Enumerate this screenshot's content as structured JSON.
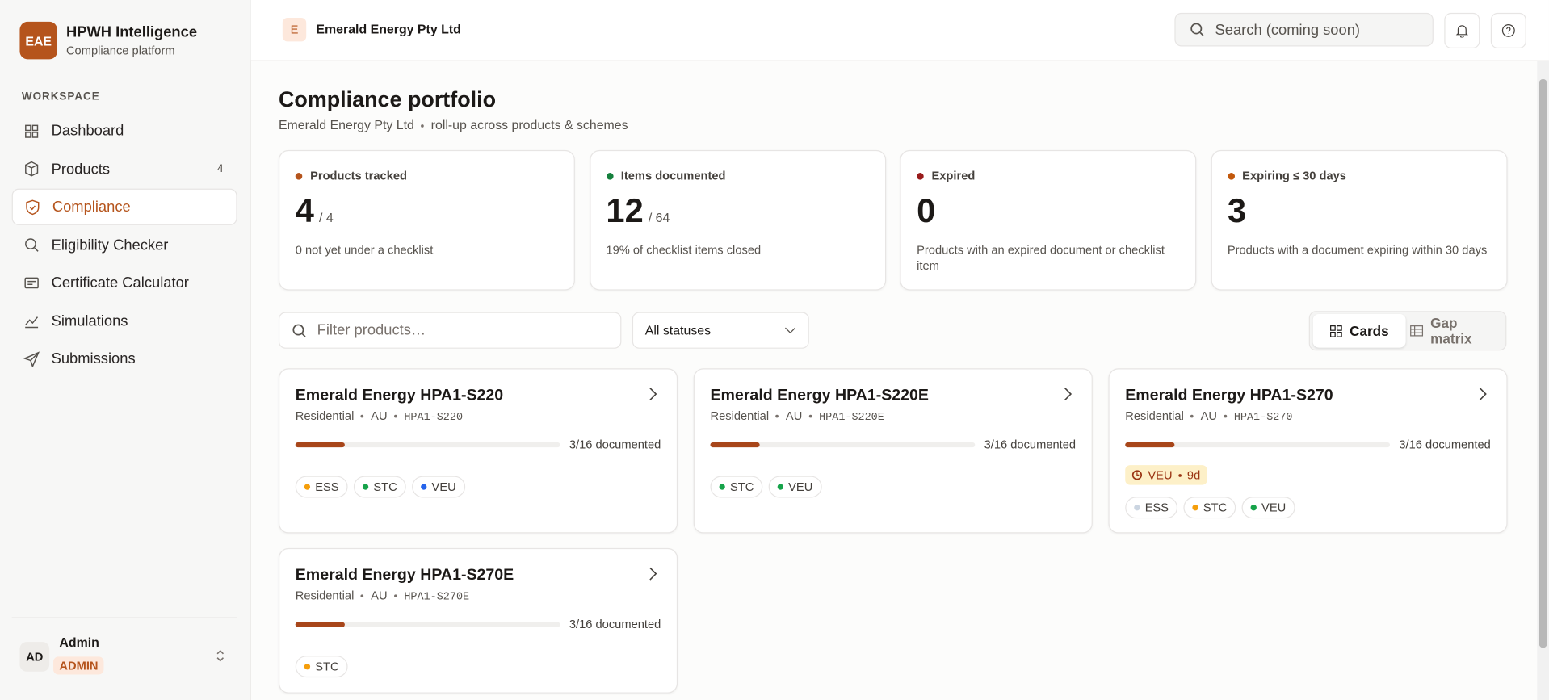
{
  "sidebar": {
    "logo": "EAE",
    "brand": "HPWH Intelligence",
    "brand_sub": "Compliance platform",
    "section": "WORKSPACE",
    "nav": [
      {
        "label": "Dashboard"
      },
      {
        "label": "Products",
        "badge": 4
      },
      {
        "label": "Compliance",
        "active": true
      },
      {
        "label": "Eligibility Checker"
      },
      {
        "label": "Certificate Calculator"
      },
      {
        "label": "Simulations"
      },
      {
        "label": "Submissions"
      }
    ],
    "user": {
      "initials": "AD",
      "name": "Admin",
      "role": "ADMIN"
    }
  },
  "topbar": {
    "org_initial": "E",
    "org_name": "Emerald Energy Pty Ltd",
    "search": "Search (coming soon)"
  },
  "page": {
    "title": "Compliance portfolio",
    "subtitle_org": "Emerald Energy Pty Ltd",
    "subtitle_rest": "roll-up across products & schemes"
  },
  "stats": [
    {
      "label": "Products tracked",
      "value": 4,
      "total": "/ 4",
      "note": "0 not yet under a checklist",
      "dot": "#b5541c"
    },
    {
      "label": "Items documented",
      "value": 12,
      "total": "/ 64",
      "note": "19% of checklist items closed",
      "dot": "#15803d"
    },
    {
      "label": "Expired",
      "value": 0,
      "note": "Products with an expired document or checklist item",
      "dot": "#991b1b"
    },
    {
      "label": "Expiring ≤ 30 days",
      "value": 3,
      "note": "Products with a document expiring within 30 days",
      "dot": "#c2580c"
    }
  ],
  "filters": {
    "search": "Filter products…",
    "status": "All statuses",
    "views": [
      {
        "label": "Cards",
        "active": true
      },
      {
        "label": "Gap matrix"
      }
    ]
  },
  "products": [
    {
      "name": "Emerald Energy HPA1-S220",
      "category": "Residential",
      "region": "AU",
      "model": "HPA1-S220",
      "documented": 3,
      "total": 16,
      "progress_label": "3/16 documented",
      "alerts": [],
      "schemes": [
        {
          "name": "ESS",
          "color": "#f59e0b"
        },
        {
          "name": "STC",
          "color": "#16a34a"
        },
        {
          "name": "VEU",
          "color": "#2563eb"
        }
      ]
    },
    {
      "name": "Emerald Energy HPA1-S220E",
      "category": "Residential",
      "region": "AU",
      "model": "HPA1-S220E",
      "documented": 3,
      "total": 16,
      "progress_label": "3/16 documented",
      "alerts": [],
      "schemes": [
        {
          "name": "STC",
          "color": "#16a34a"
        },
        {
          "name": "VEU",
          "color": "#16a34a"
        }
      ]
    },
    {
      "name": "Emerald Energy HPA1-S270",
      "category": "Residential",
      "region": "AU",
      "model": "HPA1-S270",
      "documented": 3,
      "total": 16,
      "progress_label": "3/16 documented",
      "alerts": [
        {
          "scheme": "VEU",
          "days": "9d"
        }
      ],
      "schemes": [
        {
          "name": "ESS",
          "color": "#cbd5e1"
        },
        {
          "name": "STC",
          "color": "#f59e0b"
        },
        {
          "name": "VEU",
          "color": "#16a34a"
        }
      ]
    },
    {
      "name": "Emerald Energy HPA1-S270E",
      "category": "Residential",
      "region": "AU",
      "model": "HPA1-S270E",
      "documented": 3,
      "total": 16,
      "progress_label": "3/16 documented",
      "alerts": [],
      "schemes": [
        {
          "name": "STC",
          "color": "#f59e0b"
        }
      ]
    }
  ]
}
